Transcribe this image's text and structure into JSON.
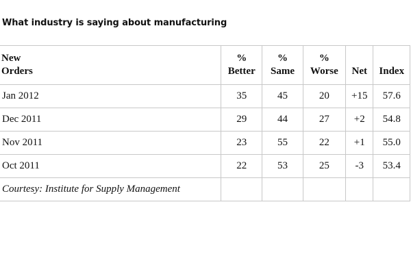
{
  "title": "What industry is saying about manufacturing",
  "table": {
    "headers": [
      [
        "New",
        "Orders"
      ],
      [
        "%",
        "Better"
      ],
      [
        "%",
        "Same"
      ],
      [
        "%",
        "Worse"
      ],
      [
        "",
        "Net"
      ],
      [
        "",
        "Index"
      ]
    ],
    "rows": [
      {
        "label": "Jan 2012",
        "better": "35",
        "same": "45",
        "worse": "20",
        "net": "+15",
        "index": "57.6"
      },
      {
        "label": "Dec 2011",
        "better": "29",
        "same": "44",
        "worse": "27",
        "net": "+2",
        "index": "54.8"
      },
      {
        "label": "Nov 2011",
        "better": "23",
        "same": "55",
        "worse": "22",
        "net": "+1",
        "index": "55.0"
      },
      {
        "label": "Oct 2011",
        "better": "22",
        "same": "53",
        "worse": "25",
        "net": "-3",
        "index": "53.4"
      }
    ],
    "source": "Courtesy: Institute for Supply Management"
  }
}
